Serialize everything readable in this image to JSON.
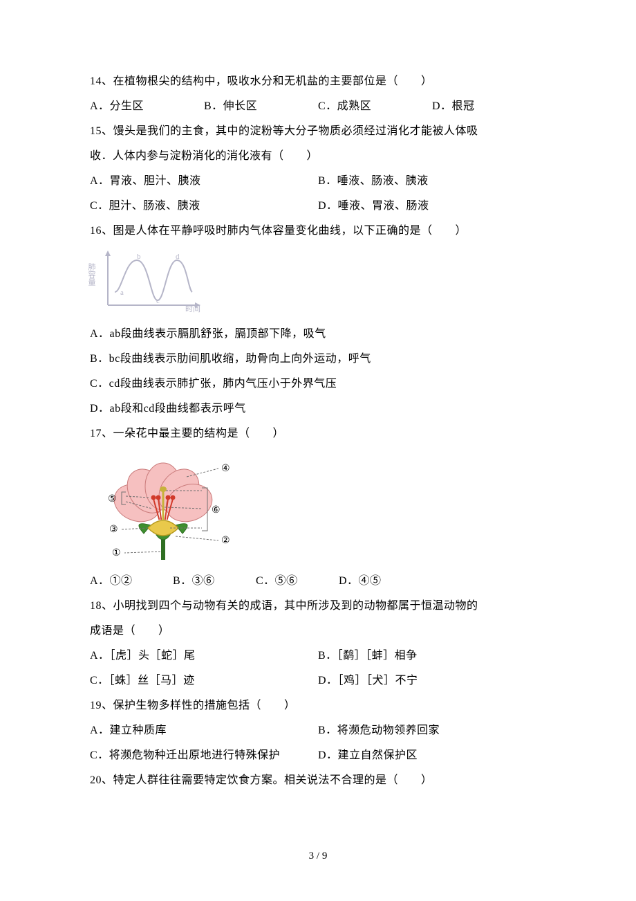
{
  "q14": {
    "stem": "14、在植物根尖的结构中，吸收水分和无机盐的主要部位是（　　）",
    "A": "A．分生区",
    "B": "B．伸长区",
    "C": "C．成熟区",
    "D": "D．根冠"
  },
  "q15": {
    "stem1": "15、馒头是我们的主食，其中的淀粉等大分子物质必须经过消化才能被人体吸",
    "stem2": "收．人体内参与淀粉消化的消化液有（　　）",
    "A": "A．胃液、胆汁、胰液",
    "B": "B．唾液、肠液、胰液",
    "C": "C．胆汁、肠液、胰液",
    "D": "D．唾液、胃液、肠液"
  },
  "q16": {
    "stem": "16、图是人体在平静呼吸时肺内气体容量变化曲线，以下正确的是（　　）",
    "axis_y": "肺容量",
    "axis_x": "时间",
    "labels": {
      "a": "a",
      "b": "b",
      "c": "c",
      "d": "d"
    },
    "curve_color": "#b5b5c8",
    "axis_color": "#b5b5c8",
    "A": "A．ab段曲线表示膈肌舒张，膈顶部下降，吸气",
    "B": "B．bc段曲线表示肋间肌收缩，助骨向上向外运动，呼气",
    "C": "C．cd段曲线表示肺扩张，肺内气压小于外界气压",
    "D": "D．ab段和cd段曲线都表示呼气"
  },
  "q17": {
    "stem": "17、一朵花中最主要的结构是（　　）",
    "flower": {
      "petal_fill": "#f6c0c0",
      "petal_stroke": "#c97a7a",
      "sepal_fill": "#3f8f2f",
      "ovary_fill": "#e9c94b",
      "ovary_stroke": "#b89b1f",
      "stamen_color": "#d13a2a",
      "style_color": "#c7b23a",
      "stem_color": "#2f6f22",
      "label_line": "#707070",
      "circled": {
        "1": "①",
        "2": "②",
        "3": "③",
        "4": "④",
        "5": "⑤",
        "6": "⑥"
      }
    },
    "A": "A．①②",
    "B": "B．③⑥",
    "C": "C．⑤⑥",
    "D": "D．④⑤"
  },
  "q18": {
    "stem1": "18、小明找到四个与动物有关的成语，其中所涉及到的动物都属于恒温动物的",
    "stem2": "成语是（　　）",
    "A": "A．［虎］头［蛇］尾",
    "B": "B．［鹬］［蚌］相争",
    "C": "C．［蛛］丝［马］迹",
    "D": "D．［鸡］［犬］不宁"
  },
  "q19": {
    "stem": "19、保护生物多样性的措施包括（　　）",
    "A": "A．建立种质库",
    "B": "B．将濒危动物领养回家",
    "C": "C．将濒危物种迁出原地进行特殊保护",
    "D": "D．建立自然保护区"
  },
  "q20": {
    "stem": "20、特定人群往往需要特定饮食方案。相关说法不合理的是（　　）"
  },
  "footer": "3 / 9"
}
